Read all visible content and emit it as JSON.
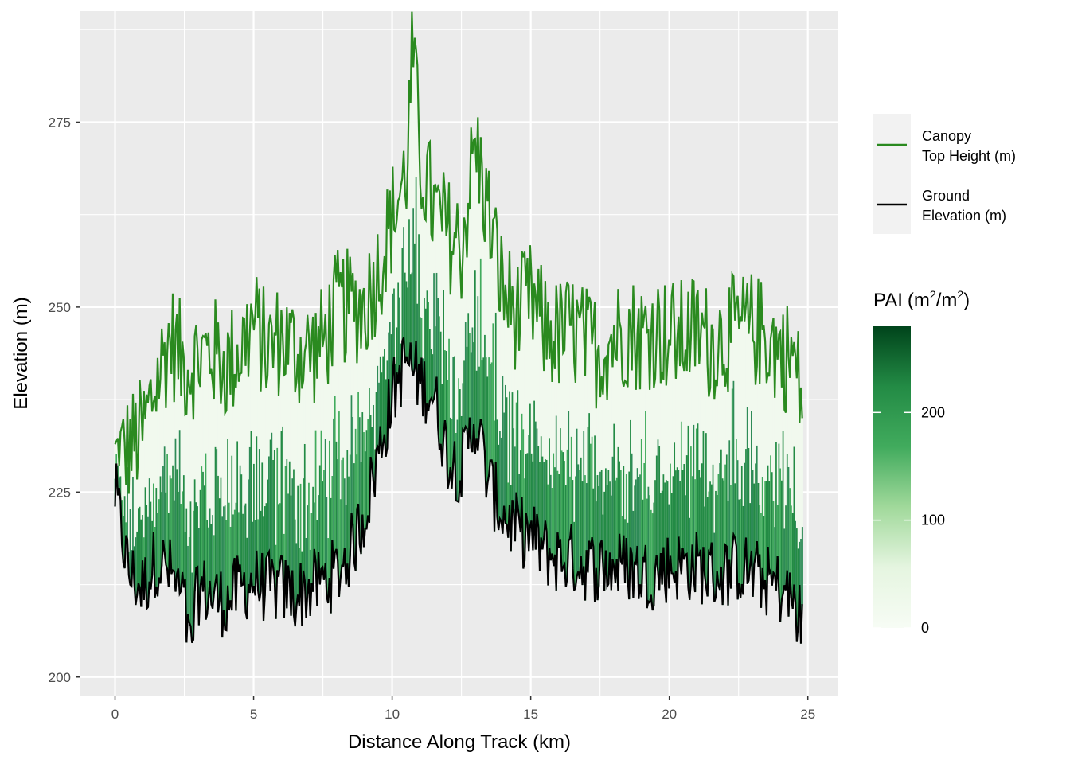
{
  "chart_data": {
    "type": "line",
    "xlabel": "Distance Along Track (km)",
    "ylabel": "Elevation (m)",
    "xlim": [
      -1.25,
      26.1
    ],
    "ylim": [
      197.5,
      290
    ],
    "x_ticks": [
      0,
      5,
      10,
      15,
      20,
      25
    ],
    "x_tick_labels": [
      "0",
      "5",
      "10",
      "15",
      "20",
      "25"
    ],
    "y_ticks": [
      200,
      225,
      250,
      275
    ],
    "y_tick_labels": [
      "200",
      "225",
      "250",
      "275"
    ],
    "grid": true,
    "legend_position": "right",
    "series": [
      {
        "name": "Canopy\nTop Height (m)",
        "color": "#2a8a1f",
        "x": [
          0,
          0.5,
          1,
          1.5,
          2,
          2.5,
          3,
          3.5,
          4,
          4.5,
          5,
          5.5,
          6,
          6.5,
          7,
          7.5,
          8,
          8.5,
          9,
          9.5,
          10,
          10.5,
          10.75,
          11,
          11.5,
          12,
          12.5,
          13,
          13.5,
          14,
          14.5,
          15,
          15.5,
          16,
          16.5,
          17,
          17.5,
          18,
          18.5,
          19,
          19.5,
          20,
          20.5,
          21,
          21.5,
          22,
          22.5,
          23,
          23.5,
          24,
          24.5,
          24.8
        ],
        "values": [
          229,
          231,
          233,
          240,
          246,
          242,
          243,
          244,
          242,
          244,
          248,
          244,
          246,
          244,
          244,
          245,
          250,
          250,
          250,
          255,
          262,
          268,
          285,
          270,
          263,
          260,
          258,
          272,
          262,
          252,
          249,
          251,
          247,
          246,
          247,
          245,
          244,
          246,
          247,
          246,
          247,
          246,
          246,
          247,
          245,
          246,
          247,
          247,
          246,
          244,
          243,
          237
        ]
      },
      {
        "name": "Ground\nElevation (m)",
        "color": "#000000",
        "x": [
          0,
          0.5,
          1,
          1.5,
          2,
          2.5,
          2.7,
          3,
          3.5,
          4,
          4.5,
          5,
          5.5,
          6,
          6.5,
          7,
          7.5,
          8,
          8.5,
          9,
          9.5,
          10,
          10.5,
          11,
          11.5,
          12,
          12.5,
          13,
          13.5,
          14,
          14.5,
          15,
          15.5,
          16,
          16.5,
          17,
          17.5,
          18,
          18.5,
          19,
          19.5,
          20,
          20.5,
          21,
          21.5,
          22,
          22.5,
          23,
          23.5,
          24,
          24.5,
          24.8
        ],
        "values": [
          225,
          214,
          212,
          216,
          214,
          210,
          203,
          212,
          211,
          210,
          212,
          213,
          212,
          212,
          211,
          212,
          213,
          214,
          217,
          222,
          230,
          238,
          243,
          240,
          238,
          230,
          228,
          235,
          226,
          222,
          220,
          219,
          217,
          216,
          216,
          215,
          215,
          215,
          215,
          214,
          214,
          215,
          215,
          215,
          214,
          214,
          215,
          214,
          213,
          212,
          210,
          207
        ]
      }
    ],
    "fill": {
      "name": "PAI (m²/m²)",
      "scale_min": 0,
      "scale_max": 280,
      "colorbar_ticks": [
        0,
        100,
        200
      ],
      "colorbar_tick_labels": [
        "0",
        "100",
        "200"
      ],
      "low_color": "#f7fcf5",
      "high_color": "#00441b"
    }
  },
  "legend": {
    "canopy_label_line1": "Canopy",
    "canopy_label_line2": "Top Height (m)",
    "ground_label_line1": "Ground",
    "ground_label_line2": "Elevation (m)",
    "pai_title": "PAI",
    "pai_unit_open": "(m",
    "pai_unit_sup1": "2",
    "pai_unit_mid": "/m",
    "pai_unit_sup2": "2",
    "pai_unit_close": ")"
  }
}
